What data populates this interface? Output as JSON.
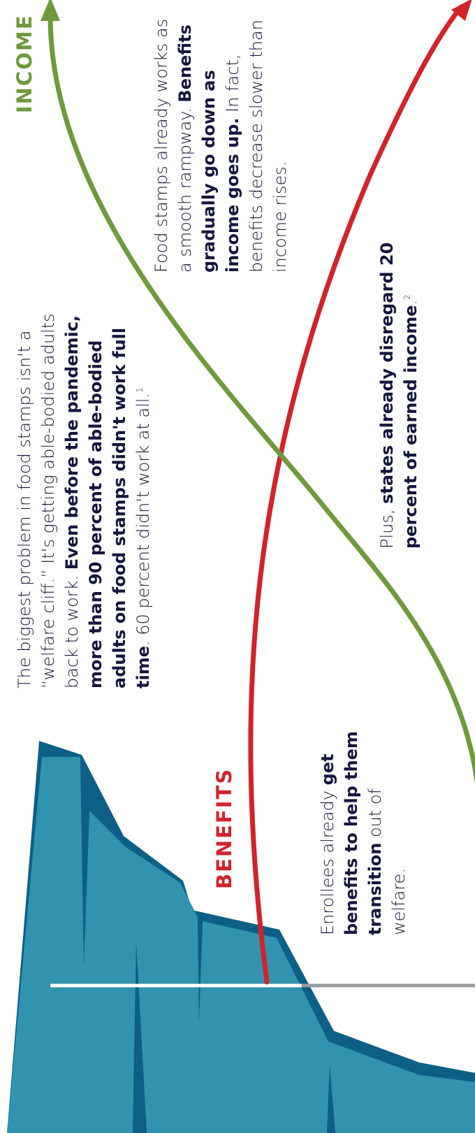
{
  "labels": {
    "income": "INCOME",
    "benefits": "BENEFITS"
  },
  "colors": {
    "income": "#6e9a3b",
    "benefits": "#d2232a",
    "cliff_light": "#3193ad",
    "cliff_dark": "#0e5f86",
    "text": "#15163f",
    "ground": "#9b9ba0",
    "ground_highlight": "#ffffff"
  },
  "paragraphs": {
    "cliff": {
      "p1": "The biggest problem in food stamps isn't a “welfare cliff.” It's getting able-bodied adults back to work.",
      "b1": "Even before the pandemic, more than 90 percent of able-bodied adults on food stamps didn't work full time",
      "p2": ". 60 percent didn't work at all.",
      "sup": "1"
    },
    "rampway": {
      "p1": "Food stamps already works as a smooth rampway.",
      "b1": "Benefits gradually go down as income goes up.",
      "p2": "In fact, benefits decrease slower than income rises."
    },
    "transition": {
      "p1": "Enrollees already",
      "b1": "get benefits to help them transition",
      "p2": "out of welfare."
    },
    "disregard": {
      "p1": "Plus,",
      "b1": "states already disregard 20 percent of earned income",
      "p2": ".",
      "sup": "2"
    }
  },
  "icons": {
    "cliff": "cliff-illustration-icon",
    "income_arrow": "income-arrow-icon",
    "benefits_arrow": "benefits-arrow-icon"
  }
}
